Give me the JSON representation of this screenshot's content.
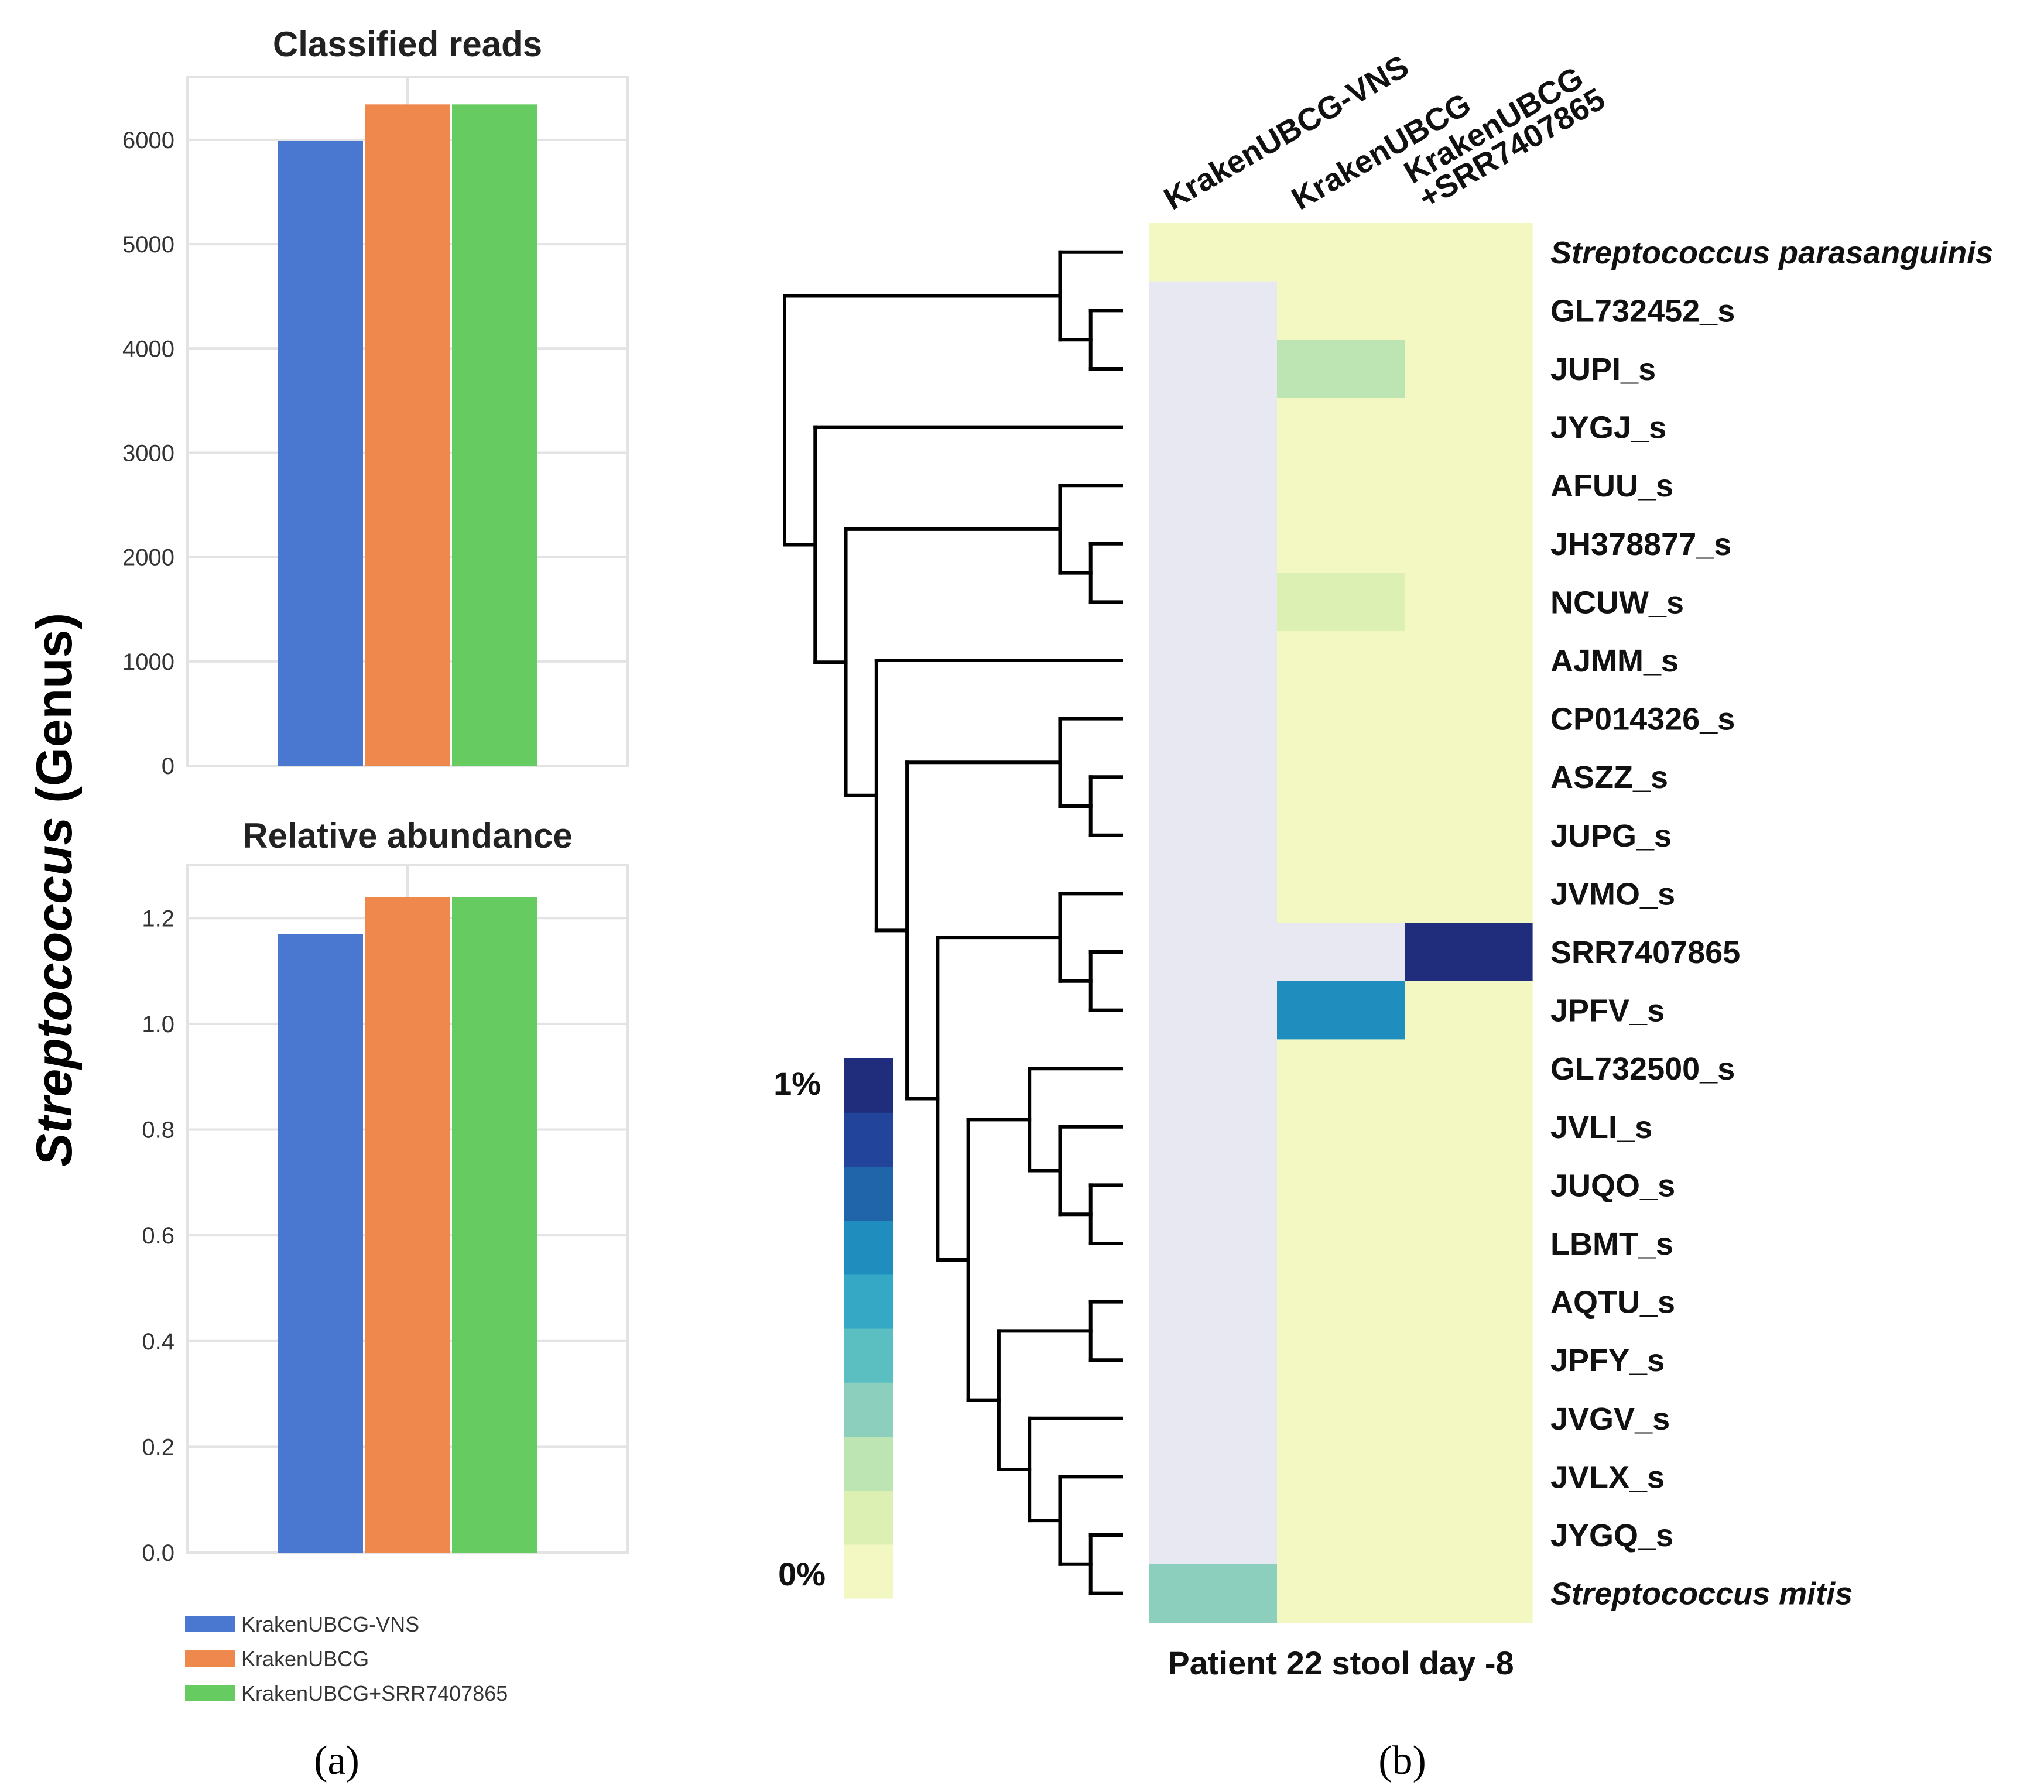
{
  "shared_ylabel": {
    "italic": "Streptococcus",
    "rest": " (Genus)"
  },
  "panel_labels": {
    "a": "(a)",
    "b": "(b)"
  },
  "legend": [
    {
      "label": "KrakenUBCG-VNS",
      "color": "#4a78d1"
    },
    {
      "label": "KrakenUBCG",
      "color": "#ef884c"
    },
    {
      "label": "KrakenUBCG+SRR7407865",
      "color": "#66cc62"
    }
  ],
  "colors": {
    "grid": "#e3e3e3",
    "heat_missing": "#e8e8f2",
    "dendro": "#000000",
    "scale": [
      "#f3f8c3",
      "#ddf0b4",
      "#bde5b4",
      "#8ccfbd",
      "#5bbfc2",
      "#35a8c6",
      "#1f8dbe",
      "#2065aa",
      "#22449a",
      "#1f2d7c"
    ]
  },
  "chart_data": [
    {
      "type": "bar",
      "title": "Classified reads",
      "xlabel": "",
      "ylabel": "Streptococcus (Genus)",
      "ylim": [
        0,
        6600
      ],
      "yticks": [
        0,
        1000,
        2000,
        3000,
        4000,
        5000,
        6000
      ],
      "ytick_labels": [
        "0",
        "1000",
        "2000",
        "3000",
        "4000",
        "5000",
        "6000"
      ],
      "grid": true,
      "series": [
        {
          "name": "KrakenUBCG-VNS",
          "values": [
            5990
          ]
        },
        {
          "name": "KrakenUBCG",
          "values": [
            6340
          ]
        },
        {
          "name": "KrakenUBCG+SRR7407865",
          "values": [
            6340
          ]
        }
      ]
    },
    {
      "type": "bar",
      "title": "Relative abundance",
      "xlabel": "",
      "ylabel": "Streptococcus (Genus)",
      "ylim": [
        0,
        1.3
      ],
      "yticks": [
        0,
        0.2,
        0.4,
        0.6,
        0.8,
        1.0,
        1.2
      ],
      "ytick_labels": [
        "0.0",
        "0.2",
        "0.4",
        "0.6",
        "0.8",
        "1.0",
        "1.2"
      ],
      "grid": true,
      "series": [
        {
          "name": "KrakenUBCG-VNS",
          "values": [
            1.17
          ]
        },
        {
          "name": "KrakenUBCG",
          "values": [
            1.24
          ]
        },
        {
          "name": "KrakenUBCG+SRR7407865",
          "values": [
            1.24
          ]
        }
      ]
    },
    {
      "type": "heatmap",
      "title": "",
      "xlabel": "Patient 22 stool day -8",
      "columns": [
        "KrakenUBCG-VNS",
        "KrakenUBCG",
        "KrakenUBCG\n+SRR7407865"
      ],
      "rows": [
        {
          "label": "Streptococcus parasanguinis",
          "italic": true
        },
        {
          "label": "GL732452_s"
        },
        {
          "label": "JUPI_s"
        },
        {
          "label": "JYGJ_s"
        },
        {
          "label": "AFUU_s"
        },
        {
          "label": "JH378877_s"
        },
        {
          "label": "NCUW_s"
        },
        {
          "label": "AJMM_s"
        },
        {
          "label": "CP014326_s"
        },
        {
          "label": "ASZZ_s"
        },
        {
          "label": "JUPG_s"
        },
        {
          "label": "JVMO_s"
        },
        {
          "label": "SRR7407865"
        },
        {
          "label": "JPFV_s"
        },
        {
          "label": "GL732500_s"
        },
        {
          "label": "JVLI_s"
        },
        {
          "label": "JUQO_s"
        },
        {
          "label": "LBMT_s"
        },
        {
          "label": "AQTU_s"
        },
        {
          "label": "JPFY_s"
        },
        {
          "label": "JVGV_s"
        },
        {
          "label": "JVLX_s"
        },
        {
          "label": "JYGQ_s"
        },
        {
          "label": "Streptococcus mitis",
          "italic": true
        }
      ],
      "values": [
        [
          0,
          0,
          0
        ],
        [
          null,
          0,
          0
        ],
        [
          null,
          0.2,
          0
        ],
        [
          null,
          0,
          0
        ],
        [
          null,
          0,
          0
        ],
        [
          null,
          0,
          0
        ],
        [
          null,
          0.1,
          0
        ],
        [
          null,
          0,
          0
        ],
        [
          null,
          0,
          0
        ],
        [
          null,
          0,
          0
        ],
        [
          null,
          0,
          0
        ],
        [
          null,
          0,
          0
        ],
        [
          null,
          null,
          1.0
        ],
        [
          null,
          0.7,
          0
        ],
        [
          null,
          0,
          0
        ],
        [
          null,
          0,
          0
        ],
        [
          null,
          0,
          0
        ],
        [
          null,
          0,
          0
        ],
        [
          null,
          0,
          0
        ],
        [
          null,
          0,
          0
        ],
        [
          null,
          0,
          0
        ],
        [
          null,
          0,
          0
        ],
        [
          null,
          0,
          0
        ],
        [
          0.3,
          0,
          0
        ]
      ],
      "color_scale": {
        "min_label": "0%",
        "max_label": "1%",
        "min": 0,
        "max": 1,
        "steps": 10
      },
      "dendrogram": {
        "children": [
          {
            "children": [
              {
                "leaf": 0
              },
              {
                "children": [
                  {
                    "leaf": 1
                  },
                  {
                    "leaf": 2
                  }
                ]
              }
            ]
          },
          {
            "children": [
              {
                "leaf": 3
              },
              {
                "children": [
                  {
                    "children": [
                      {
                        "leaf": 4
                      },
                      {
                        "children": [
                          {
                            "leaf": 5
                          },
                          {
                            "leaf": 6
                          }
                        ]
                      }
                    ]
                  },
                  {
                    "children": [
                      {
                        "leaf": 7
                      },
                      {
                        "children": [
                          {
                            "children": [
                              {
                                "leaf": 8
                              },
                              {
                                "children": [
                                  {
                                    "leaf": 9
                                  },
                                  {
                                    "leaf": 10
                                  }
                                ]
                              }
                            ]
                          },
                          {
                            "children": [
                              {
                                "children": [
                                  {
                                    "leaf": 11
                                  },
                                  {
                                    "children": [
                                      {
                                        "leaf": 12
                                      },
                                      {
                                        "leaf": 13
                                      }
                                    ]
                                  }
                                ]
                              },
                              {
                                "children": [
                                  {
                                    "children": [
                                      {
                                        "leaf": 14
                                      },
                                      {
                                        "children": [
                                          {
                                            "leaf": 15
                                          },
                                          {
                                            "children": [
                                              {
                                                "leaf": 16
                                              },
                                              {
                                                "leaf": 17
                                              }
                                            ]
                                          }
                                        ]
                                      }
                                    ]
                                  },
                                  {
                                    "children": [
                                      {
                                        "children": [
                                          {
                                            "leaf": 18
                                          },
                                          {
                                            "leaf": 19
                                          }
                                        ]
                                      },
                                      {
                                        "children": [
                                          {
                                            "leaf": 20
                                          },
                                          {
                                            "children": [
                                              {
                                                "leaf": 21
                                              },
                                              {
                                                "children": [
                                                  {
                                                    "leaf": 22
                                                  },
                                                  {
                                                    "leaf": 23
                                                  }
                                                ]
                                              }
                                            ]
                                          }
                                        ]
                                      }
                                    ]
                                  }
                                ]
                              }
                            ]
                          }
                        ]
                      }
                    ]
                  }
                ]
              }
            ]
          }
        ]
      }
    }
  ]
}
